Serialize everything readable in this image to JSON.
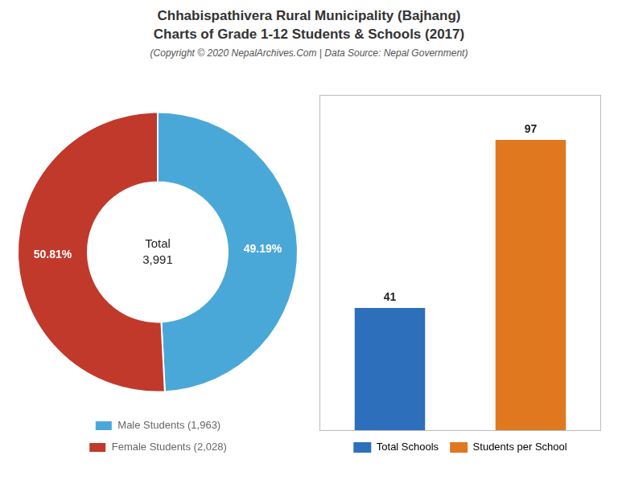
{
  "chart_data": [
    {
      "type": "doughnut",
      "title": [
        "Chhabispathivera Rural Municipality (Bajhang)",
        "Charts of Grade 1-12 Students & Schools (2017)"
      ],
      "subtitle": "(Copyright © 2020 NepalArchives.Com | Data Source: Nepal Government)",
      "categories": [
        "Male Students (1,963)",
        "Female Students (2,028)"
      ],
      "values": [
        49.19,
        50.81
      ],
      "value_labels": [
        "49.19%",
        "50.81%"
      ],
      "colors": [
        "#4aa8d8",
        "#c0392b"
      ],
      "data_labels": true,
      "annotations": [
        "Total",
        "3,991"
      ],
      "legend": "bottom"
    },
    {
      "type": "bar",
      "categories": [
        "Total Schools",
        "Students per School"
      ],
      "values": [
        41,
        97
      ],
      "colors": [
        "#2e6fbc",
        "#e07820"
      ],
      "ylim": [
        0,
        112
      ],
      "data_labels": true,
      "tick_labels": false,
      "grid": false,
      "legend": "bottom"
    }
  ]
}
